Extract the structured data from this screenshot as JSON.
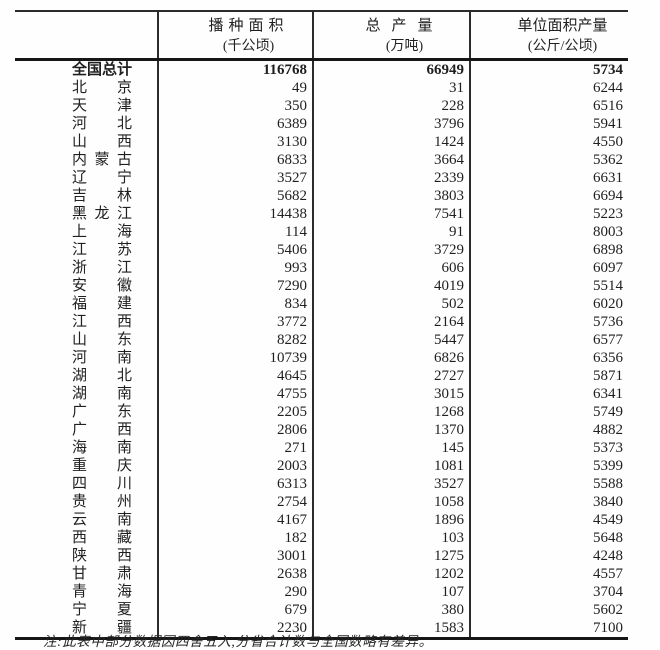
{
  "table": {
    "columns": [
      {
        "title": "播种面积",
        "unit": "(千公顷)"
      },
      {
        "title": "总产量",
        "unit": "(万吨)"
      },
      {
        "title": "单位面积产量",
        "unit": "(公斤/公顷)"
      }
    ],
    "rows": [
      {
        "name": "全国总计",
        "total": true,
        "values": [
          "116768",
          "66949",
          "5734"
        ]
      },
      {
        "name": "北京",
        "values": [
          "49",
          "31",
          "6244"
        ]
      },
      {
        "name": "天津",
        "values": [
          "350",
          "228",
          "6516"
        ]
      },
      {
        "name": "河北",
        "values": [
          "6389",
          "3796",
          "5941"
        ]
      },
      {
        "name": "山西",
        "values": [
          "3130",
          "1424",
          "4550"
        ]
      },
      {
        "name": "内蒙古",
        "values": [
          "6833",
          "3664",
          "5362"
        ]
      },
      {
        "name": "辽宁",
        "values": [
          "3527",
          "2339",
          "6631"
        ]
      },
      {
        "name": "吉林",
        "values": [
          "5682",
          "3803",
          "6694"
        ]
      },
      {
        "name": "黑龙江",
        "values": [
          "14438",
          "7541",
          "5223"
        ]
      },
      {
        "name": "上海",
        "values": [
          "114",
          "91",
          "8003"
        ]
      },
      {
        "name": "江苏",
        "values": [
          "5406",
          "3729",
          "6898"
        ]
      },
      {
        "name": "浙江",
        "values": [
          "993",
          "606",
          "6097"
        ]
      },
      {
        "name": "安徽",
        "values": [
          "7290",
          "4019",
          "5514"
        ]
      },
      {
        "name": "福建",
        "values": [
          "834",
          "502",
          "6020"
        ]
      },
      {
        "name": "江西",
        "values": [
          "3772",
          "2164",
          "5736"
        ]
      },
      {
        "name": "山东",
        "values": [
          "8282",
          "5447",
          "6577"
        ]
      },
      {
        "name": "河南",
        "values": [
          "10739",
          "6826",
          "6356"
        ]
      },
      {
        "name": "湖北",
        "values": [
          "4645",
          "2727",
          "5871"
        ]
      },
      {
        "name": "湖南",
        "values": [
          "4755",
          "3015",
          "6341"
        ]
      },
      {
        "name": "广东",
        "values": [
          "2205",
          "1268",
          "5749"
        ]
      },
      {
        "name": "广西",
        "values": [
          "2806",
          "1370",
          "4882"
        ]
      },
      {
        "name": "海南",
        "values": [
          "271",
          "145",
          "5373"
        ]
      },
      {
        "name": "重庆",
        "values": [
          "2003",
          "1081",
          "5399"
        ]
      },
      {
        "name": "四川",
        "values": [
          "6313",
          "3527",
          "5588"
        ]
      },
      {
        "name": "贵州",
        "values": [
          "2754",
          "1058",
          "3840"
        ]
      },
      {
        "name": "云南",
        "values": [
          "4167",
          "1896",
          "4549"
        ]
      },
      {
        "name": "西藏",
        "values": [
          "182",
          "103",
          "5648"
        ]
      },
      {
        "name": "陕西",
        "values": [
          "3001",
          "1275",
          "4248"
        ]
      },
      {
        "name": "甘肃",
        "values": [
          "2638",
          "1202",
          "4557"
        ]
      },
      {
        "name": "青海",
        "values": [
          "290",
          "107",
          "3704"
        ]
      },
      {
        "name": "宁夏",
        "values": [
          "679",
          "380",
          "5602"
        ]
      },
      {
        "name": "新疆",
        "values": [
          "2230",
          "1583",
          "7100"
        ]
      }
    ]
  },
  "note": "注:此表中部分数据因四舍五入,分省合计数与全国数略有差异。",
  "colors": {
    "text": "#1f1f1f",
    "border": "#2b2b2b",
    "background": "#fefefe"
  }
}
